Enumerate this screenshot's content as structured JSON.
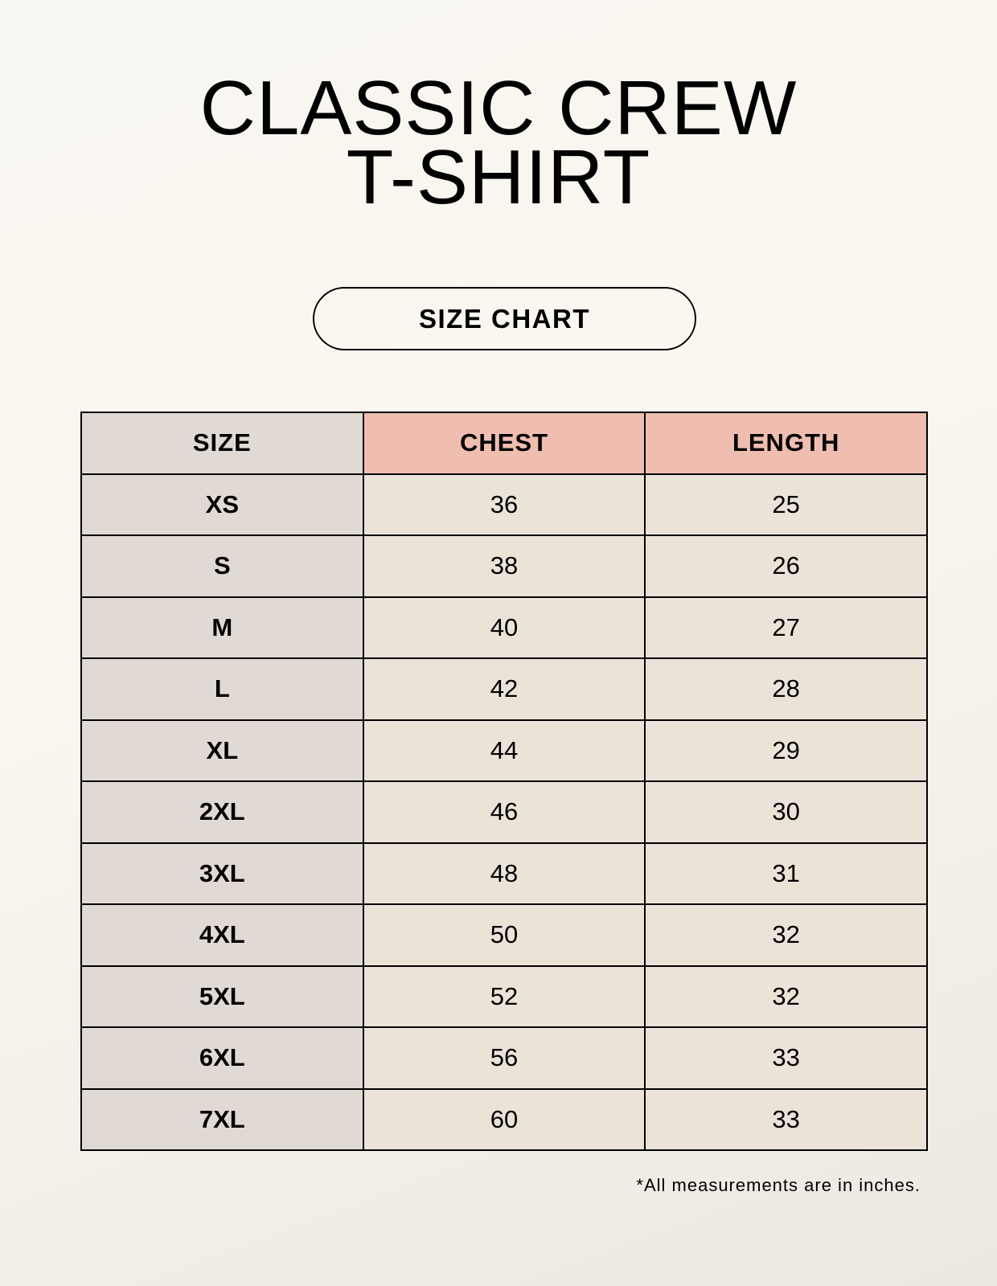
{
  "title_line1": "CLASSIC CREW",
  "title_line2": "T-SHIRT",
  "badge": "SIZE CHART",
  "colors": {
    "size_column": "#e1d9d3",
    "header_accent": "#efbeb0",
    "value_cells": "#ebe3d8"
  },
  "table": {
    "headers": [
      "SIZE",
      "CHEST",
      "LENGTH"
    ],
    "rows": [
      [
        "XS",
        "36",
        "25"
      ],
      [
        "S",
        "38",
        "26"
      ],
      [
        "M",
        "40",
        "27"
      ],
      [
        "L",
        "42",
        "28"
      ],
      [
        "XL",
        "44",
        "29"
      ],
      [
        "2XL",
        "46",
        "30"
      ],
      [
        "3XL",
        "48",
        "31"
      ],
      [
        "4XL",
        "50",
        "32"
      ],
      [
        "5XL",
        "52",
        "32"
      ],
      [
        "6XL",
        "56",
        "33"
      ],
      [
        "7XL",
        "60",
        "33"
      ]
    ]
  },
  "footnote": "*All measurements are in inches."
}
